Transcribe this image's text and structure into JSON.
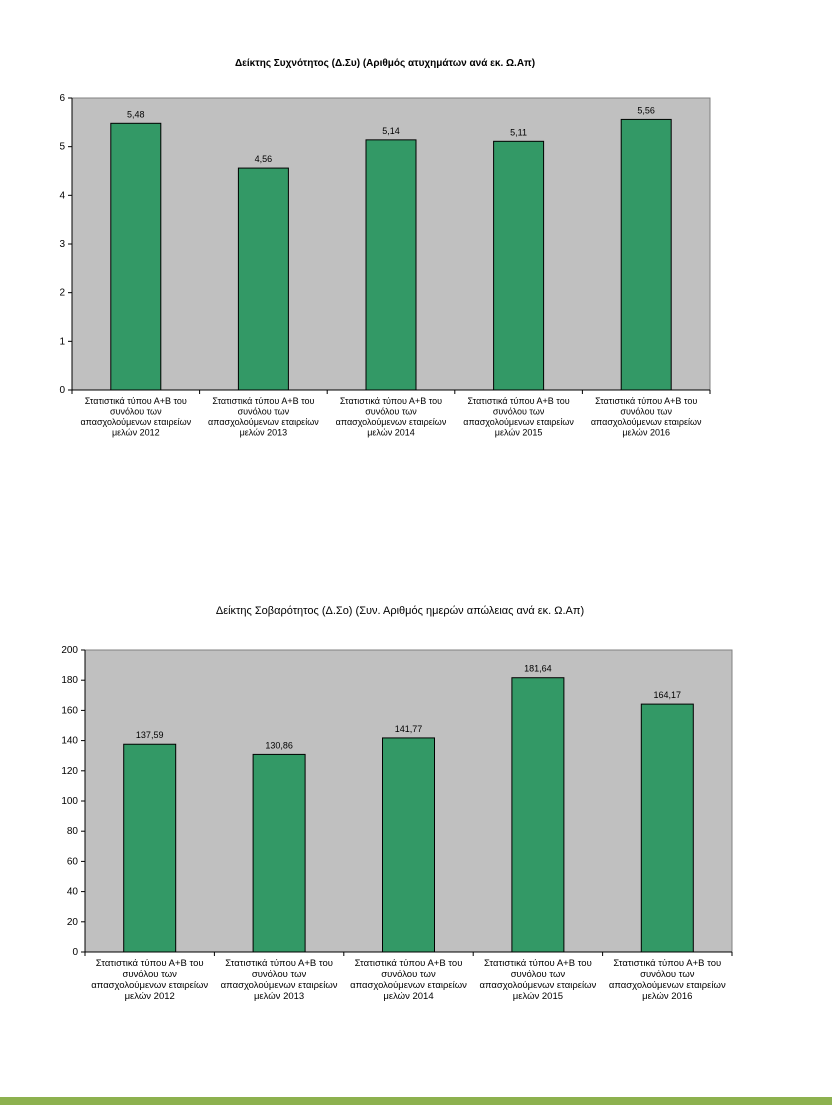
{
  "colors": {
    "plot_bg": "#c0c0c0",
    "bar_fill": "#339966",
    "bar_stroke": "#000000",
    "footer_stripe": "#8db14f"
  },
  "chart_data": [
    {
      "type": "bar",
      "title": "Δείκτης Συχνότητος (Δ.Συ) (Αριθμός ατυχημάτων  ανά εκ. Ω.Απ)",
      "categories": [
        [
          "Στατιστικά τύπου Α+Β του",
          "συνόλου των",
          "απασχολούμενων εταιρείων",
          "μελών 2012"
        ],
        [
          "Στατιστικά τύπου Α+Β του",
          "συνόλου των",
          "απασχολούμενων εταιρείων",
          "μελών 2013"
        ],
        [
          "Στατιστικά τύπου Α+Β του",
          "συνόλου των",
          "απασχολούμενων εταιρείων",
          "μελών 2014"
        ],
        [
          "Στατιστικά τύπου Α+Β του",
          "συνόλου των",
          "απασχολούμενων εταιρείων",
          "μελών 2015"
        ],
        [
          "Στατιστικά τύπου Α+Β του",
          "συνόλου των",
          "απασχολούμενων εταιρείων",
          "μελών 2016"
        ]
      ],
      "values": [
        5.48,
        4.56,
        5.14,
        5.11,
        5.56
      ],
      "value_labels": [
        "5,48",
        "4,56",
        "5,14",
        "5,11",
        "5,56"
      ],
      "ylim": [
        0,
        6
      ],
      "yticks": [
        0,
        1,
        2,
        3,
        4,
        5,
        6
      ],
      "grid": false,
      "legend": false
    },
    {
      "type": "bar",
      "title": "Δείκτης Σοβαρότητος (Δ.Σο) (Συν. Αριθμός ημερών απώλειας ανά εκ. Ω.Απ)",
      "categories": [
        [
          "Στατιστικά τύπου Α+Β του",
          "συνόλου των",
          "απασχολούμενων εταιρείων",
          "μελών 2012"
        ],
        [
          "Στατιστικά τύπου Α+Β του",
          "συνόλου των",
          "απασχολούμενων εταιρείων",
          "μελών 2013"
        ],
        [
          "Στατιστικά τύπου Α+Β του",
          "συνόλου των",
          "απασχολούμενων εταιρείων",
          "μελών 2014"
        ],
        [
          "Στατιστικά τύπου Α+Β του",
          "συνόλου των",
          "απασχολούμενων εταιρείων",
          "μελών 2015"
        ],
        [
          "Στατιστικά τύπου Α+Β του",
          "συνόλου των",
          "απασχολούμενων εταιρείων",
          "μελών 2016"
        ]
      ],
      "values": [
        137.59,
        130.86,
        141.77,
        181.64,
        164.17
      ],
      "value_labels": [
        "137,59",
        "130,86",
        "141,77",
        "181,64",
        "164,17"
      ],
      "ylim": [
        0,
        200
      ],
      "yticks": [
        0,
        20,
        40,
        60,
        80,
        100,
        120,
        140,
        160,
        180,
        200
      ],
      "grid": false,
      "legend": false
    }
  ]
}
